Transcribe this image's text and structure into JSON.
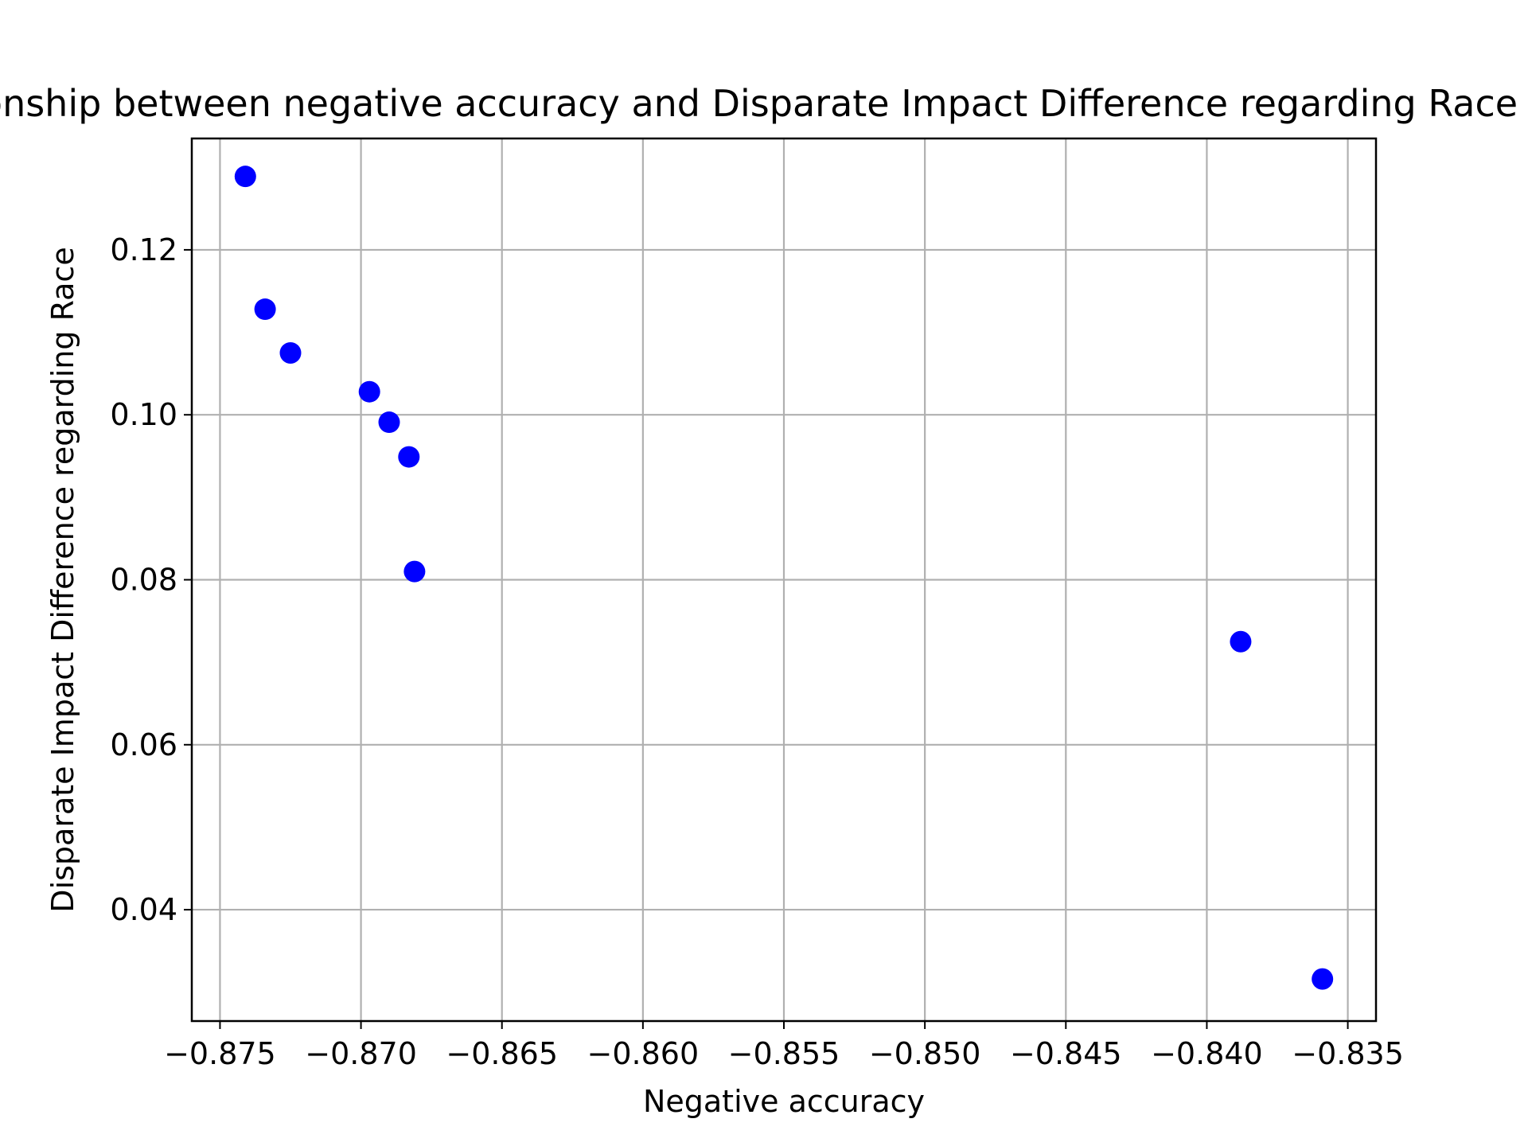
{
  "chart_data": {
    "type": "scatter",
    "title": "Relationship between negative accuracy and Disparate Impact Difference regarding Race for the",
    "xlabel": "Negative accuracy",
    "ylabel": "Disparate Impact Difference regarding Race",
    "xlim": [
      -0.876,
      -0.834
    ],
    "ylim": [
      0.0265,
      0.1335
    ],
    "x_ticks": [
      -0.875,
      -0.87,
      -0.865,
      -0.86,
      -0.855,
      -0.85,
      -0.845,
      -0.84,
      -0.835
    ],
    "x_tick_labels": [
      "−0.875",
      "−0.870",
      "−0.865",
      "−0.860",
      "−0.855",
      "−0.850",
      "−0.845",
      "−0.840",
      "−0.835"
    ],
    "y_ticks": [
      0.04,
      0.06,
      0.08,
      0.1,
      0.12
    ],
    "y_tick_labels": [
      "0.04",
      "0.06",
      "0.08",
      "0.10",
      "0.12"
    ],
    "grid": true,
    "point_color": "#0000ff",
    "points": [
      {
        "x": -0.8741,
        "y": 0.1289
      },
      {
        "x": -0.8734,
        "y": 0.1128
      },
      {
        "x": -0.8725,
        "y": 0.1075
      },
      {
        "x": -0.8697,
        "y": 0.1028
      },
      {
        "x": -0.869,
        "y": 0.0991
      },
      {
        "x": -0.8683,
        "y": 0.0949
      },
      {
        "x": -0.8681,
        "y": 0.081
      },
      {
        "x": -0.8388,
        "y": 0.0725
      },
      {
        "x": -0.8359,
        "y": 0.0316
      }
    ]
  }
}
